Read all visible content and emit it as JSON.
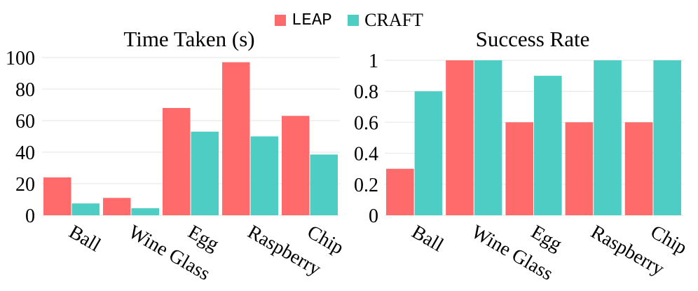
{
  "legend": {
    "items": [
      {
        "label": "LEAP",
        "color": "#ff6b6b"
      },
      {
        "label": "CRAFT",
        "color": "#4ecdc4"
      }
    ]
  },
  "chart_data": [
    {
      "type": "bar",
      "title": "Time Taken (s)",
      "xlabel": "",
      "ylabel": "",
      "categories": [
        "Ball",
        "Wine Glass",
        "Egg",
        "Raspberry",
        "Chip"
      ],
      "series": [
        {
          "name": "LEAP",
          "values": [
            24,
            11,
            68,
            97,
            63
          ],
          "color": "#ff6b6b"
        },
        {
          "name": "CRAFT",
          "values": [
            7.5,
            4.5,
            53,
            50,
            38.5
          ],
          "color": "#4ecdc4"
        }
      ],
      "ylim": [
        0,
        100
      ],
      "yticks": [
        0,
        20,
        40,
        60,
        80,
        100
      ],
      "ytick_labels": [
        "0",
        "20",
        "40",
        "60",
        "80",
        "100"
      ],
      "grid": true
    },
    {
      "type": "bar",
      "title": "Success Rate",
      "xlabel": "",
      "ylabel": "",
      "categories": [
        "Ball",
        "Wine Glass",
        "Egg",
        "Raspberry",
        "Chip"
      ],
      "series": [
        {
          "name": "LEAP",
          "values": [
            0.3,
            1.0,
            0.6,
            0.6,
            0.6
          ],
          "color": "#ff6b6b"
        },
        {
          "name": "CRAFT",
          "values": [
            0.8,
            1.0,
            0.9,
            1.0,
            1.0
          ],
          "color": "#4ecdc4"
        }
      ],
      "ylim": [
        0,
        1
      ],
      "yticks": [
        0,
        0.2,
        0.4,
        0.6,
        0.8,
        1
      ],
      "ytick_labels": [
        "0",
        "0.2",
        "0.4",
        "0.6",
        "0.8",
        "1"
      ],
      "grid": true
    }
  ]
}
